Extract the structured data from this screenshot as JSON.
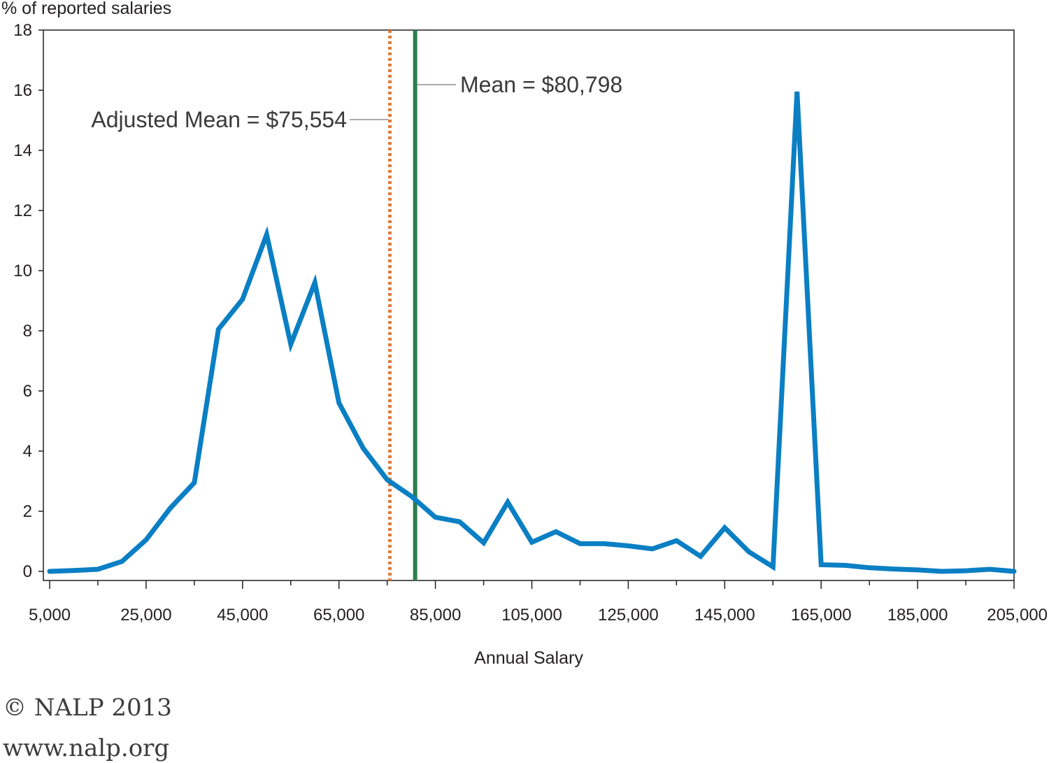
{
  "chart_data": {
    "type": "line",
    "title": "",
    "xlabel": "Annual Salary",
    "ylabel": "% of reported salaries",
    "xlim": [
      5000,
      205000
    ],
    "ylim": [
      0,
      18
    ],
    "x_ticks": [
      5000,
      25000,
      45000,
      65000,
      85000,
      105000,
      125000,
      145000,
      165000,
      185000,
      205000
    ],
    "x_tick_labels": [
      "5,000",
      "25,000",
      "45,000",
      "65,000",
      "85,000",
      "105,000",
      "125,000",
      "145,000",
      "165,000",
      "185,000",
      "205,000"
    ],
    "y_ticks": [
      0,
      2,
      4,
      6,
      8,
      10,
      12,
      14,
      16,
      18
    ],
    "y_tick_labels": [
      "0",
      "2",
      "4",
      "6",
      "8",
      "10",
      "12",
      "14",
      "16",
      "18"
    ],
    "grid": false,
    "series": [
      {
        "color": "#0a7fc4",
        "x": [
          5000,
          10000,
          15000,
          20000,
          25000,
          30000,
          35000,
          40000,
          45000,
          50000,
          55000,
          60000,
          65000,
          70000,
          75000,
          80000,
          85000,
          90000,
          95000,
          100000,
          105000,
          110000,
          115000,
          120000,
          125000,
          130000,
          135000,
          140000,
          145000,
          150000,
          155000,
          160000,
          165000,
          170000,
          175000,
          180000,
          185000,
          190000,
          195000,
          200000,
          205000
        ],
        "y": [
          0.0,
          0.03,
          0.07,
          0.33,
          1.05,
          2.1,
          2.95,
          8.05,
          9.05,
          11.2,
          7.55,
          9.6,
          5.6,
          4.1,
          3.05,
          2.5,
          1.8,
          1.65,
          0.95,
          2.3,
          0.97,
          1.32,
          0.92,
          0.92,
          0.85,
          0.75,
          1.02,
          0.5,
          1.45,
          0.65,
          0.15,
          15.95,
          0.22,
          0.2,
          0.12,
          0.08,
          0.05,
          0.0,
          0.02,
          0.07,
          0.0
        ]
      }
    ],
    "reference_lines": [
      {
        "x": 75554,
        "label": "Adjusted Mean = $75,554",
        "color": "#e07b39",
        "style": "dotted"
      },
      {
        "x": 80798,
        "label": "Mean = $80,798",
        "color": "#2e7d4f",
        "style": "solid"
      }
    ]
  },
  "footer": {
    "copyright": "© NALP 2013",
    "website": "www.nalp.org"
  }
}
